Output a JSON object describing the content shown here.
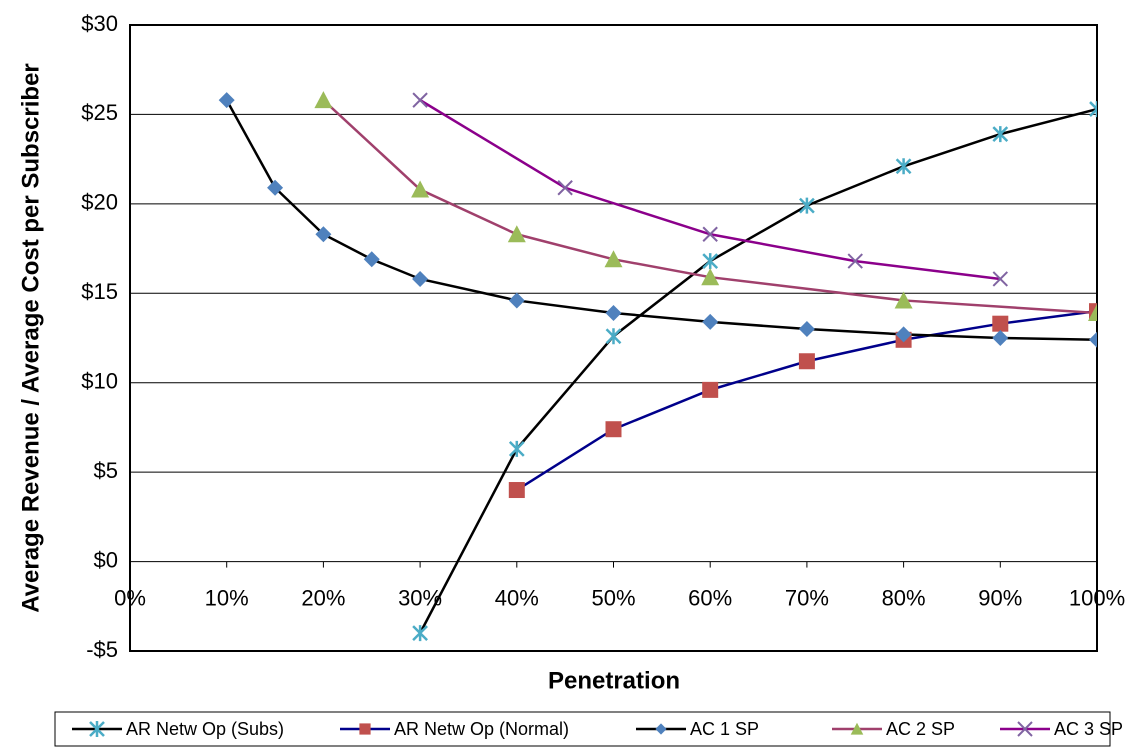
{
  "chart_data": {
    "type": "line",
    "x_label": "Penetration",
    "y_label": "Average Revenue / Average Cost per Subscriber",
    "xlim": [
      0,
      100
    ],
    "ylim": [
      -5,
      30
    ],
    "xticks": [
      {
        "value": 0,
        "label": "0%"
      },
      {
        "value": 10,
        "label": "10%"
      },
      {
        "value": 20,
        "label": "20%"
      },
      {
        "value": 30,
        "label": "30%"
      },
      {
        "value": 40,
        "label": "40%"
      },
      {
        "value": 50,
        "label": "50%"
      },
      {
        "value": 60,
        "label": "60%"
      },
      {
        "value": 70,
        "label": "70%"
      },
      {
        "value": 80,
        "label": "80%"
      },
      {
        "value": 90,
        "label": "90%"
      },
      {
        "value": 100,
        "label": "100%"
      }
    ],
    "yticks": [
      {
        "value": -5,
        "label": "-$5"
      },
      {
        "value": 0,
        "label": "$0"
      },
      {
        "value": 5,
        "label": "$5"
      },
      {
        "value": 10,
        "label": "$10"
      },
      {
        "value": 15,
        "label": "$15"
      },
      {
        "value": 20,
        "label": "$20"
      },
      {
        "value": 25,
        "label": "$25"
      },
      {
        "value": 30,
        "label": "$30"
      }
    ],
    "grid": true,
    "legend": "bottom",
    "series": [
      {
        "name": "AR Netw Op (Subs)",
        "color": "#000000",
        "marker_color": "#4bacc6",
        "marker": "star",
        "x": [
          30,
          40,
          50,
          60,
          70,
          80,
          90,
          100
        ],
        "values": [
          -4.0,
          6.3,
          12.6,
          16.8,
          19.9,
          22.1,
          23.9,
          25.3
        ]
      },
      {
        "name": "AR Netw Op (Normal)",
        "color": "#00008b",
        "marker_color": "#c0504d",
        "marker": "square",
        "x": [
          40,
          50,
          60,
          70,
          80,
          90,
          100
        ],
        "values": [
          4.0,
          7.4,
          9.6,
          11.2,
          12.4,
          13.3,
          14.0
        ]
      },
      {
        "name": "AC 1 SP",
        "color": "#000000",
        "marker_color": "#4f81bd",
        "marker": "diamond",
        "x": [
          10,
          15,
          20,
          25,
          30,
          40,
          50,
          60,
          70,
          80,
          90,
          100
        ],
        "values": [
          25.8,
          20.9,
          18.3,
          16.9,
          15.8,
          14.6,
          13.9,
          13.4,
          13.0,
          12.7,
          12.5,
          12.4
        ]
      },
      {
        "name": "AC 2 SP",
        "color": "#a0406c",
        "marker_color": "#9bbb59",
        "marker": "triangle",
        "x": [
          20,
          30,
          40,
          50,
          60,
          80,
          100
        ],
        "values": [
          25.8,
          20.8,
          18.3,
          16.9,
          15.9,
          14.6,
          13.9
        ]
      },
      {
        "name": "AC 3 SP",
        "color": "#8b008b",
        "marker_color": "#8064a2",
        "marker": "x",
        "x": [
          30,
          45,
          60,
          75,
          90
        ],
        "values": [
          25.8,
          20.9,
          18.3,
          16.8,
          15.8
        ]
      }
    ]
  }
}
